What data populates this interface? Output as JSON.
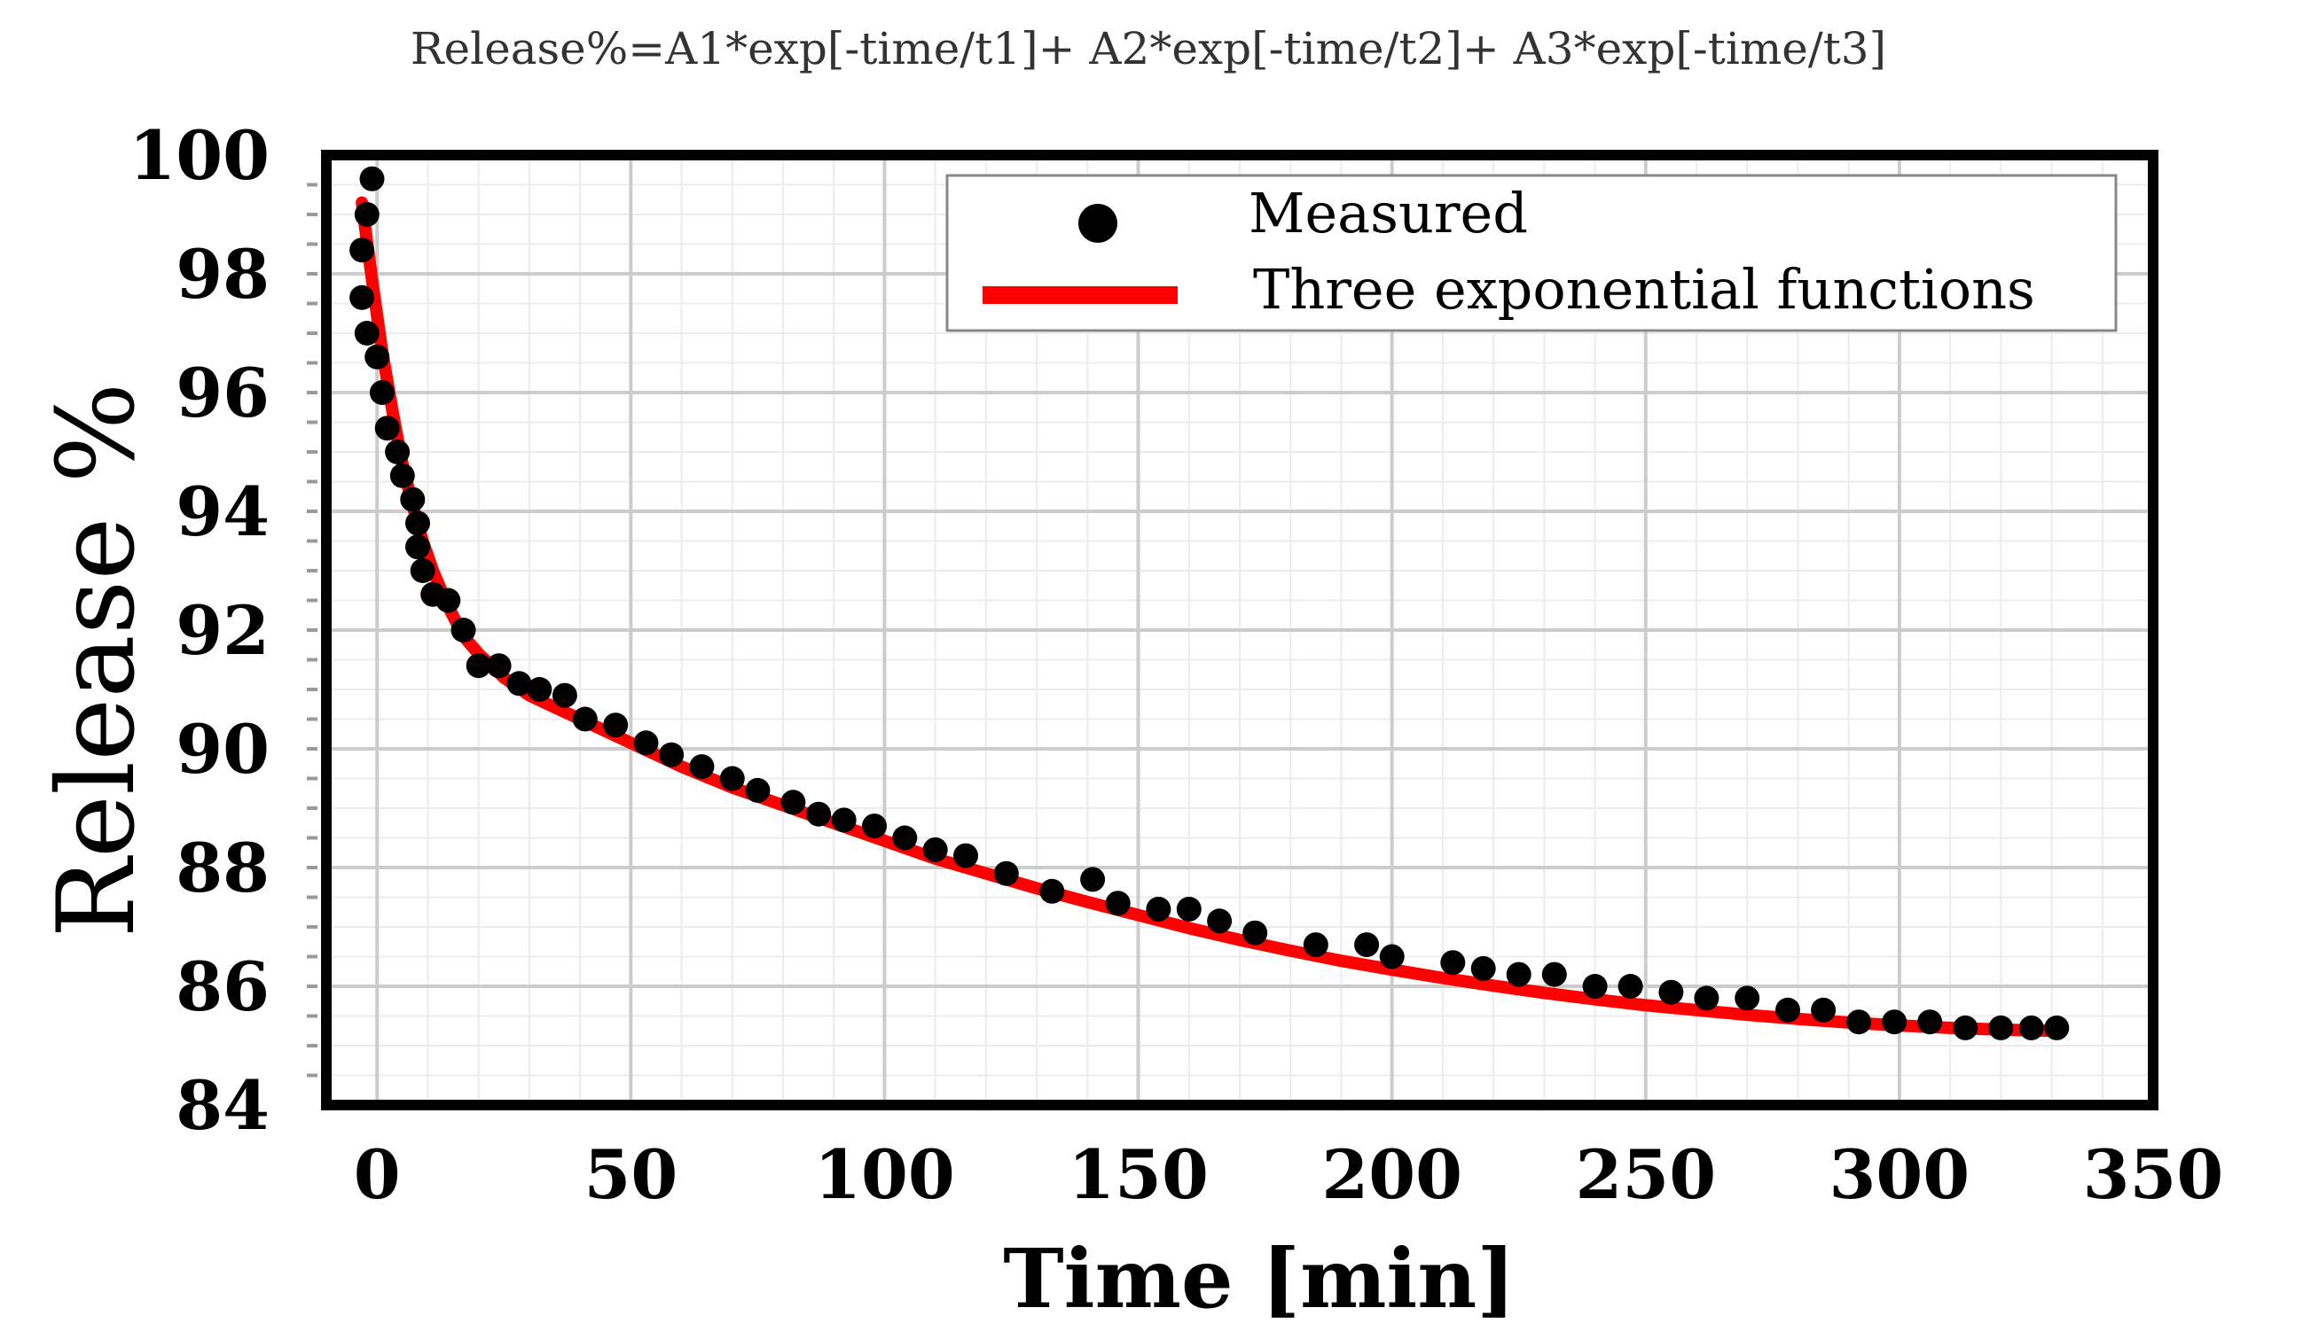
{
  "chart_data": {
    "type": "scatter",
    "title": "Release%=A1*exp[-time/t1]+ A2*exp[-time/t2]+ A3*exp[-time/t3]",
    "xlabel": "Time [min]",
    "ylabel": "Release %",
    "xlim": [
      -10,
      350
    ],
    "ylim": [
      84,
      100
    ],
    "xticks": [
      "0",
      "50",
      "100",
      "150",
      "200",
      "250",
      "300",
      "350"
    ],
    "yticks": [
      "84",
      "86",
      "88",
      "90",
      "92",
      "94",
      "96",
      "98",
      "100"
    ],
    "grid": true,
    "legend_position": "top-right",
    "series": [
      {
        "name": "Measured",
        "kind": "scatter",
        "color": "#000000",
        "x": [
          -1,
          -2,
          -3,
          -3,
          -2,
          0,
          1,
          2,
          4,
          5,
          7,
          8,
          8,
          9,
          11,
          14,
          17,
          20,
          24,
          28,
          32,
          37,
          41,
          47,
          53,
          58,
          64,
          70,
          75,
          82,
          87,
          92,
          98,
          104,
          110,
          116,
          124,
          133,
          141,
          146,
          154,
          160,
          166,
          173,
          185,
          195,
          200,
          212,
          218,
          225,
          232,
          240,
          247,
          255,
          262,
          270,
          278,
          285,
          292,
          299,
          306,
          313,
          320,
          326,
          331
        ],
        "y": [
          99.6,
          99.0,
          98.4,
          97.6,
          97.0,
          96.6,
          96.0,
          95.4,
          95.0,
          94.6,
          94.2,
          93.8,
          93.4,
          93.0,
          92.6,
          92.5,
          92.0,
          91.4,
          91.4,
          91.1,
          91.0,
          90.9,
          90.5,
          90.4,
          90.1,
          89.9,
          89.7,
          89.5,
          89.3,
          89.1,
          88.9,
          88.8,
          88.7,
          88.5,
          88.3,
          88.2,
          87.9,
          87.6,
          87.8,
          87.4,
          87.3,
          87.3,
          87.1,
          86.9,
          86.7,
          86.7,
          86.5,
          86.4,
          86.3,
          86.2,
          86.2,
          86.0,
          86.0,
          85.9,
          85.8,
          85.8,
          85.6,
          85.6,
          85.4,
          85.4,
          85.4,
          85.3,
          85.3,
          85.3,
          85.3
        ]
      },
      {
        "name": "Three exponential functions",
        "kind": "line",
        "color": "#ff0000",
        "x": [
          -3,
          -1,
          1,
          3,
          5,
          7,
          9,
          11,
          14,
          17,
          20,
          25,
          30,
          35,
          40,
          50,
          60,
          70,
          80,
          90,
          100,
          110,
          120,
          130,
          140,
          150,
          160,
          170,
          180,
          190,
          200,
          210,
          220,
          230,
          240,
          250,
          260,
          270,
          280,
          290,
          300,
          310,
          320,
          331
        ],
        "y": [
          99.2,
          97.9,
          96.7,
          95.7,
          94.8,
          94.1,
          93.5,
          93.0,
          92.4,
          91.9,
          91.6,
          91.2,
          90.9,
          90.7,
          90.5,
          90.1,
          89.7,
          89.35,
          89.05,
          88.75,
          88.45,
          88.15,
          87.9,
          87.65,
          87.42,
          87.2,
          86.98,
          86.78,
          86.6,
          86.43,
          86.28,
          86.14,
          86.01,
          85.89,
          85.78,
          85.68,
          85.6,
          85.52,
          85.45,
          85.39,
          85.34,
          85.3,
          85.27,
          85.25
        ]
      }
    ]
  }
}
